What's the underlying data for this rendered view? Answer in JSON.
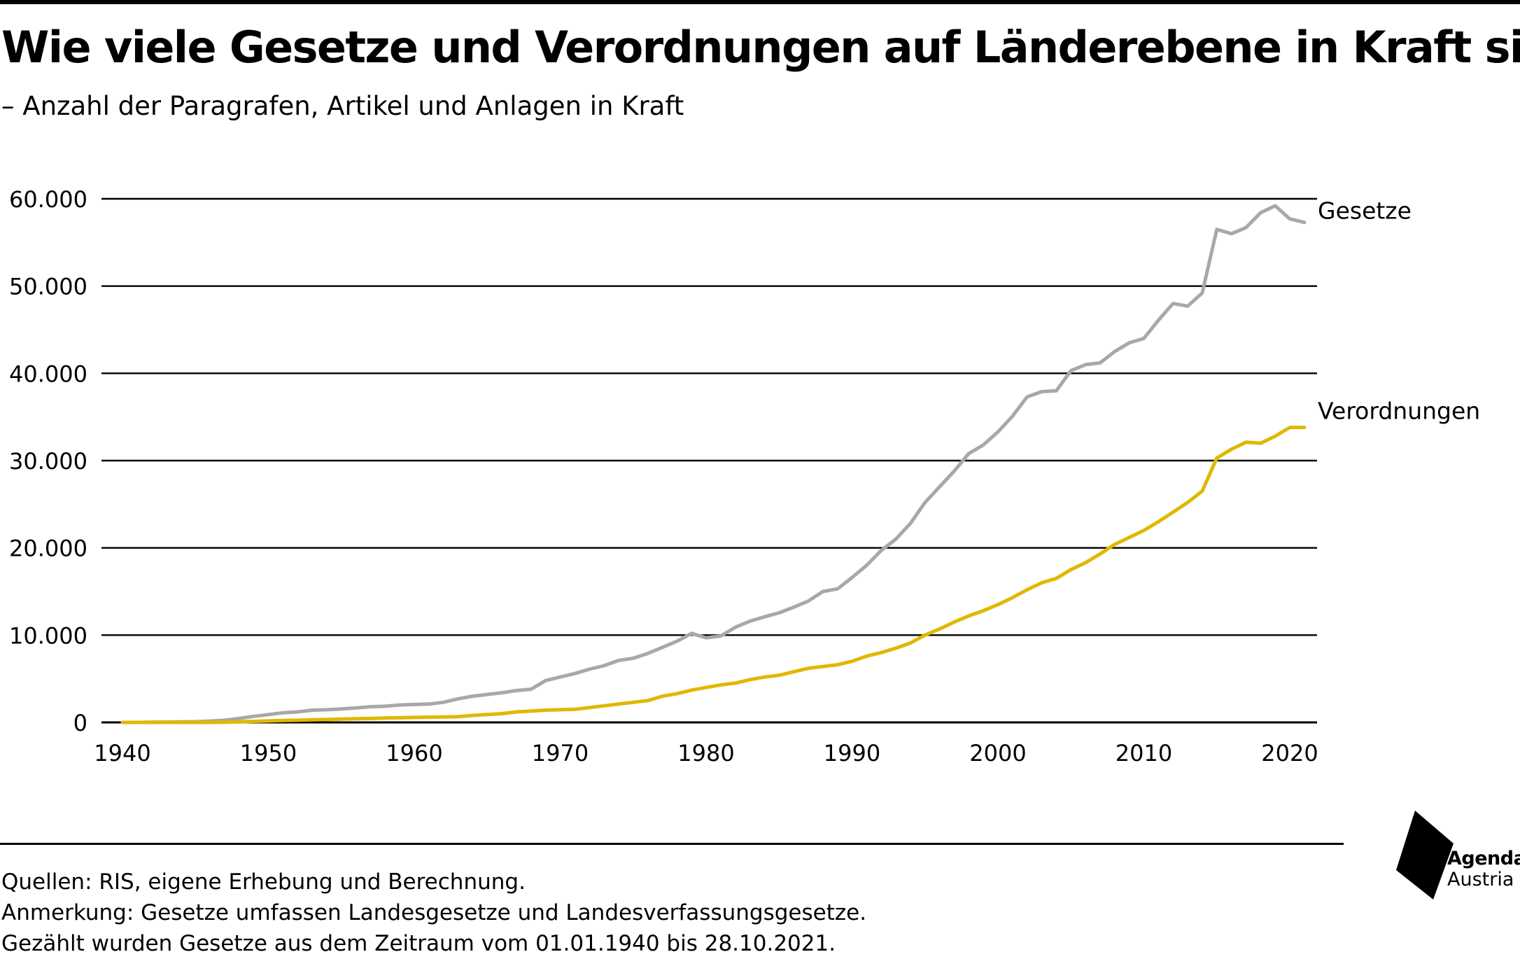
{
  "title": "Wie viele Gesetze und Verordnungen auf Länderebene in Kraft sind",
  "subtitle": "– Anzahl der Paragrafen, Artikel und Anlagen in Kraft",
  "footer": {
    "line1": "Quellen: RIS, eigene Erhebung und Berechnung.",
    "line2": "Anmerkung: Gesetze umfassen Landesgesetze und Landesverfassungsgesetze.",
    "line3": "Gezählt wurden Gesetze aus dem Zeitraum vom 01.01.1940 bis 28.10.2021."
  },
  "logo": {
    "line1": "Agenda",
    "line2": "Austria"
  },
  "colors": {
    "gesetze": "#a8a8a8",
    "verordnungen": "#e0b800",
    "grid": "#000000"
  },
  "chart_data": {
    "type": "line",
    "title": "Wie viele Gesetze und Verordnungen auf Länderebene in Kraft sind",
    "subtitle": "– Anzahl der Paragrafen, Artikel und Anlagen in Kraft",
    "xlim": [
      1940,
      2022
    ],
    "ylim": [
      0,
      60000
    ],
    "x_ticks": [
      1940,
      1950,
      1960,
      1970,
      1980,
      1990,
      2000,
      2010,
      2020
    ],
    "x_tick_labels": [
      "1940",
      "1950",
      "1960",
      "1970",
      "1980",
      "1990",
      "2000",
      "2010",
      "2020"
    ],
    "y_ticks": [
      0,
      10000,
      20000,
      30000,
      40000,
      50000,
      60000
    ],
    "y_tick_labels": [
      "0",
      "10.000",
      "20.000",
      "30.000",
      "40.000",
      "50.000",
      "60.000"
    ],
    "grid": "horizontal",
    "legend": "direct labels at line ends (right)",
    "series": [
      {
        "name": "Gesetze",
        "color": "#a8a8a8",
        "x": [
          1940,
          1941,
          1942,
          1943,
          1944,
          1945,
          1946,
          1947,
          1948,
          1949,
          1950,
          1951,
          1952,
          1953,
          1954,
          1955,
          1956,
          1957,
          1958,
          1959,
          1960,
          1961,
          1962,
          1963,
          1964,
          1965,
          1966,
          1967,
          1968,
          1969,
          1970,
          1971,
          1972,
          1973,
          1974,
          1975,
          1976,
          1977,
          1978,
          1979,
          1980,
          1981,
          1982,
          1983,
          1984,
          1985,
          1986,
          1987,
          1988,
          1989,
          1990,
          1991,
          1992,
          1993,
          1994,
          1995,
          1996,
          1997,
          1998,
          1999,
          2000,
          2001,
          2002,
          2003,
          2004,
          2005,
          2006,
          2007,
          2008,
          2009,
          2010,
          2011,
          2012,
          2013,
          2014,
          2015,
          2016,
          2017,
          2018,
          2019,
          2020,
          2021
        ],
        "values": [
          0,
          0,
          30,
          40,
          60,
          80,
          150,
          250,
          450,
          700,
          900,
          1100,
          1200,
          1400,
          1450,
          1550,
          1650,
          1800,
          1850,
          2000,
          2050,
          2100,
          2300,
          2700,
          3000,
          3200,
          3400,
          3650,
          3800,
          4800,
          5200,
          5600,
          6100,
          6500,
          7100,
          7350,
          7900,
          8600,
          9300,
          10200,
          9700,
          9900,
          10900,
          11600,
          12100,
          12550,
          13200,
          13900,
          15000,
          15300,
          16600,
          18000,
          19700,
          21000,
          22800,
          25200,
          27000,
          28800,
          30800,
          31800,
          33300,
          35100,
          37300,
          37900,
          38000,
          40300,
          41000,
          41200,
          42500,
          43500,
          44000,
          46100,
          48000,
          47700,
          49200,
          56500,
          56000,
          56700,
          58400,
          59200,
          57700,
          57300
        ]
      },
      {
        "name": "Verordnungen",
        "color": "#e0b800",
        "x": [
          1940,
          1941,
          1942,
          1943,
          1944,
          1945,
          1946,
          1947,
          1948,
          1949,
          1950,
          1951,
          1952,
          1953,
          1954,
          1955,
          1956,
          1957,
          1958,
          1959,
          1960,
          1961,
          1962,
          1963,
          1964,
          1965,
          1966,
          1967,
          1968,
          1969,
          1970,
          1971,
          1972,
          1973,
          1974,
          1975,
          1976,
          1977,
          1978,
          1979,
          1980,
          1981,
          1982,
          1983,
          1984,
          1985,
          1986,
          1987,
          1988,
          1989,
          1990,
          1991,
          1992,
          1993,
          1994,
          1995,
          1996,
          1997,
          1998,
          1999,
          2000,
          2001,
          2002,
          2003,
          2004,
          2005,
          2006,
          2007,
          2008,
          2009,
          2010,
          2011,
          2012,
          2013,
          2014,
          2015,
          2016,
          2017,
          2018,
          2019,
          2020,
          2021
        ],
        "values": [
          0,
          0,
          0,
          0,
          0,
          0,
          0,
          20,
          60,
          120,
          170,
          220,
          250,
          300,
          330,
          380,
          420,
          450,
          500,
          530,
          570,
          600,
          620,
          650,
          800,
          900,
          1000,
          1200,
          1300,
          1400,
          1450,
          1500,
          1700,
          1900,
          2100,
          2300,
          2500,
          3000,
          3300,
          3700,
          4000,
          4300,
          4500,
          4900,
          5200,
          5400,
          5800,
          6200,
          6400,
          6600,
          7000,
          7600,
          8000,
          8500,
          9100,
          10000,
          10700,
          11500,
          12200,
          12800,
          13500,
          14300,
          15200,
          16000,
          16500,
          17500,
          18300,
          19300,
          20400,
          21200,
          22000,
          23000,
          24100,
          25200,
          26500,
          30300,
          31300,
          32100,
          32000,
          32800,
          33800,
          33800
        ]
      }
    ]
  }
}
